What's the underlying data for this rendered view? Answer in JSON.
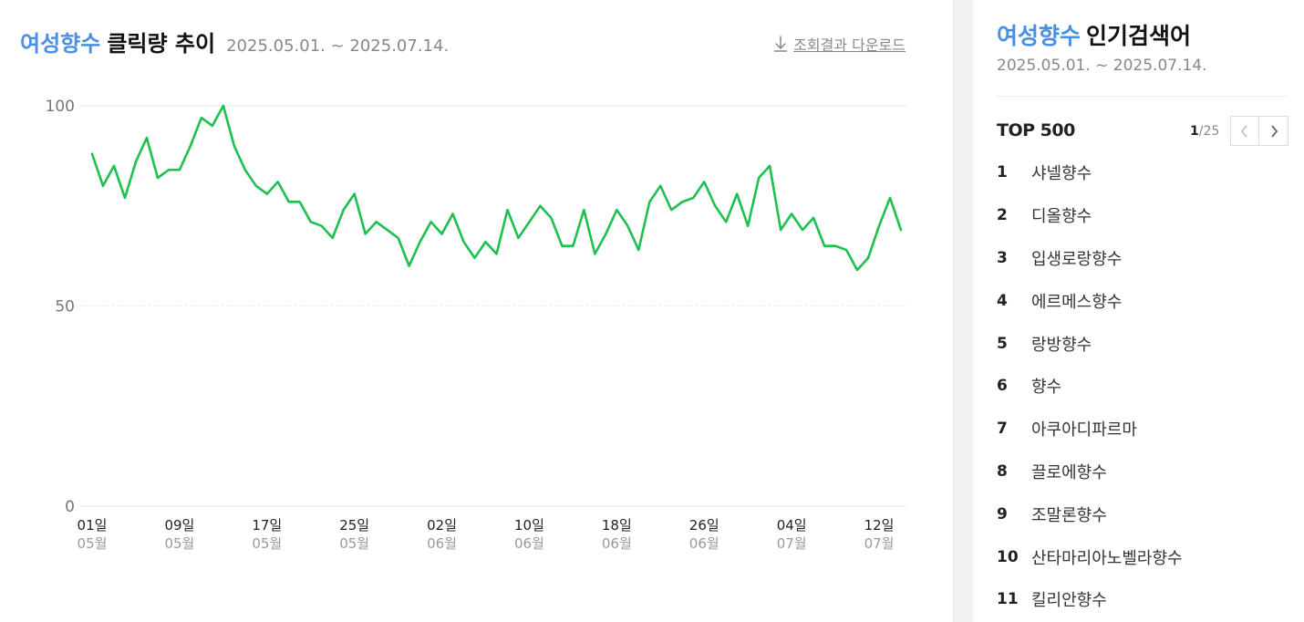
{
  "header": {
    "keyword": "여성향수",
    "title": "클릭량 추이",
    "period": "2025.05.01. ~ 2025.07.14.",
    "download_label": "조회결과 다운로드"
  },
  "chart_data": {
    "type": "line",
    "title": "",
    "xlabel": "",
    "ylabel": "",
    "ylim": [
      0,
      100
    ],
    "yticks": [
      0,
      50,
      100
    ],
    "grid": true,
    "x_ticks": [
      {
        "day": "01일",
        "month": "05월",
        "index": 0
      },
      {
        "day": "09일",
        "month": "05월",
        "index": 8
      },
      {
        "day": "17일",
        "month": "05월",
        "index": 16
      },
      {
        "day": "25일",
        "month": "05월",
        "index": 24
      },
      {
        "day": "02일",
        "month": "06월",
        "index": 32
      },
      {
        "day": "10일",
        "month": "06월",
        "index": 40
      },
      {
        "day": "18일",
        "month": "06월",
        "index": 48
      },
      {
        "day": "26일",
        "month": "06월",
        "index": 56
      },
      {
        "day": "04일",
        "month": "07월",
        "index": 64
      },
      {
        "day": "12일",
        "month": "07월",
        "index": 72
      }
    ],
    "series": [
      {
        "color": "#1ec04f",
        "values": [
          88,
          80,
          85,
          77,
          86,
          92,
          82,
          84,
          84,
          90,
          97,
          95,
          100,
          90,
          84,
          80,
          78,
          81,
          76,
          76,
          71,
          70,
          67,
          74,
          78,
          68,
          71,
          69,
          67,
          60,
          66,
          71,
          68,
          73,
          66,
          62,
          66,
          63,
          74,
          67,
          71,
          75,
          72,
          65,
          65,
          74,
          63,
          68,
          74,
          70,
          64,
          76,
          80,
          74,
          76,
          77,
          81,
          75,
          71,
          78,
          70,
          82,
          85,
          69,
          73,
          69,
          72,
          65,
          65,
          64,
          59,
          62,
          70,
          77,
          69
        ]
      }
    ]
  },
  "sidebar": {
    "keyword": "여성향수",
    "title": "인기검색어",
    "period": "2025.05.01. ~ 2025.07.14.",
    "top_label": "TOP 500",
    "page_current": "1",
    "page_total": "/25",
    "items": [
      {
        "rank": "1",
        "name": "샤넬향수"
      },
      {
        "rank": "2",
        "name": "디올향수"
      },
      {
        "rank": "3",
        "name": "입생로랑향수"
      },
      {
        "rank": "4",
        "name": "에르메스향수"
      },
      {
        "rank": "5",
        "name": "랑방향수"
      },
      {
        "rank": "6",
        "name": "향수"
      },
      {
        "rank": "7",
        "name": "아쿠아디파르마"
      },
      {
        "rank": "8",
        "name": "끌로에향수"
      },
      {
        "rank": "9",
        "name": "조말론향수"
      },
      {
        "rank": "10",
        "name": "산타마리아노벨라향수"
      },
      {
        "rank": "11",
        "name": "킬리안향수"
      }
    ]
  }
}
